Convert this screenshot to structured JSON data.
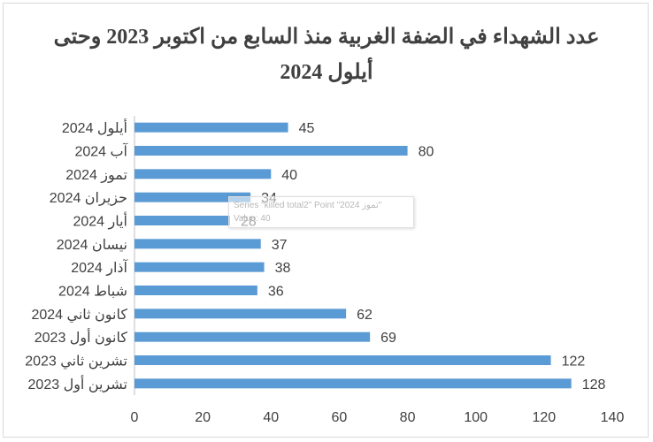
{
  "title_line1": "عدد الشهداء في الضفة الغربية منذ السابع من اكتوبر 2023 وحتى",
  "title_line2": "أيلول 2024",
  "tooltip": {
    "line1": "Series \"killed total2\" Point \"تموز 2024\"",
    "line2": "Value: 40"
  },
  "colors": {
    "bar": "#5b9bd5",
    "axis": "#bfbfbf",
    "text": "#404040",
    "title": "#404040"
  },
  "chart_data": {
    "type": "bar",
    "orientation": "horizontal",
    "categories": [
      "أيلول 2024",
      "آب 2024",
      "تموز 2024",
      "حزيران 2024",
      "أيار 2024",
      "نيسان 2024",
      "آذار 2024",
      "شباط 2024",
      "كانون ثاني 2024",
      "كانون أول 2023",
      "تشرين ثاني 2023",
      "تشرين أول 2023"
    ],
    "values": [
      45,
      80,
      40,
      34,
      28,
      37,
      38,
      36,
      62,
      69,
      122,
      128
    ],
    "xlim": [
      0,
      140
    ],
    "xticks": [
      0,
      20,
      40,
      60,
      80,
      100,
      120,
      140
    ],
    "grid": false,
    "legend": "none",
    "data_labels": true
  }
}
